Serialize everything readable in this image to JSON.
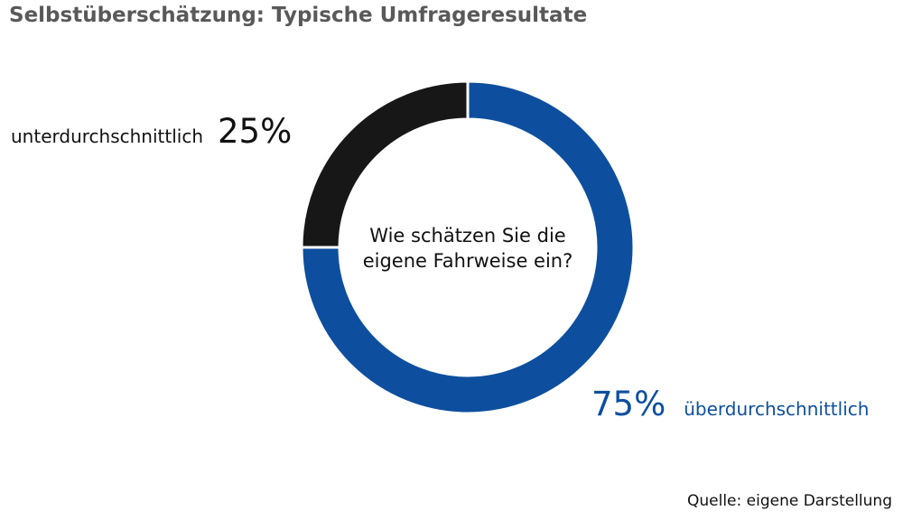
{
  "chart_data": {
    "type": "pie",
    "variant": "donut",
    "title": "Selbstüberschätzung: Typische Umfrageresultate",
    "center_text": [
      "Wie schätzen Sie die",
      "eigene Fahrweise ein?"
    ],
    "source": "Quelle: eigene Darstellung",
    "slices": [
      {
        "label": "überdurchschnittlich",
        "value": 75,
        "value_label": "75%",
        "color": "#0d4f9e"
      },
      {
        "label": "unterdurchschnittlich",
        "value": 25,
        "value_label": "25%",
        "color": "#171717"
      }
    ]
  }
}
